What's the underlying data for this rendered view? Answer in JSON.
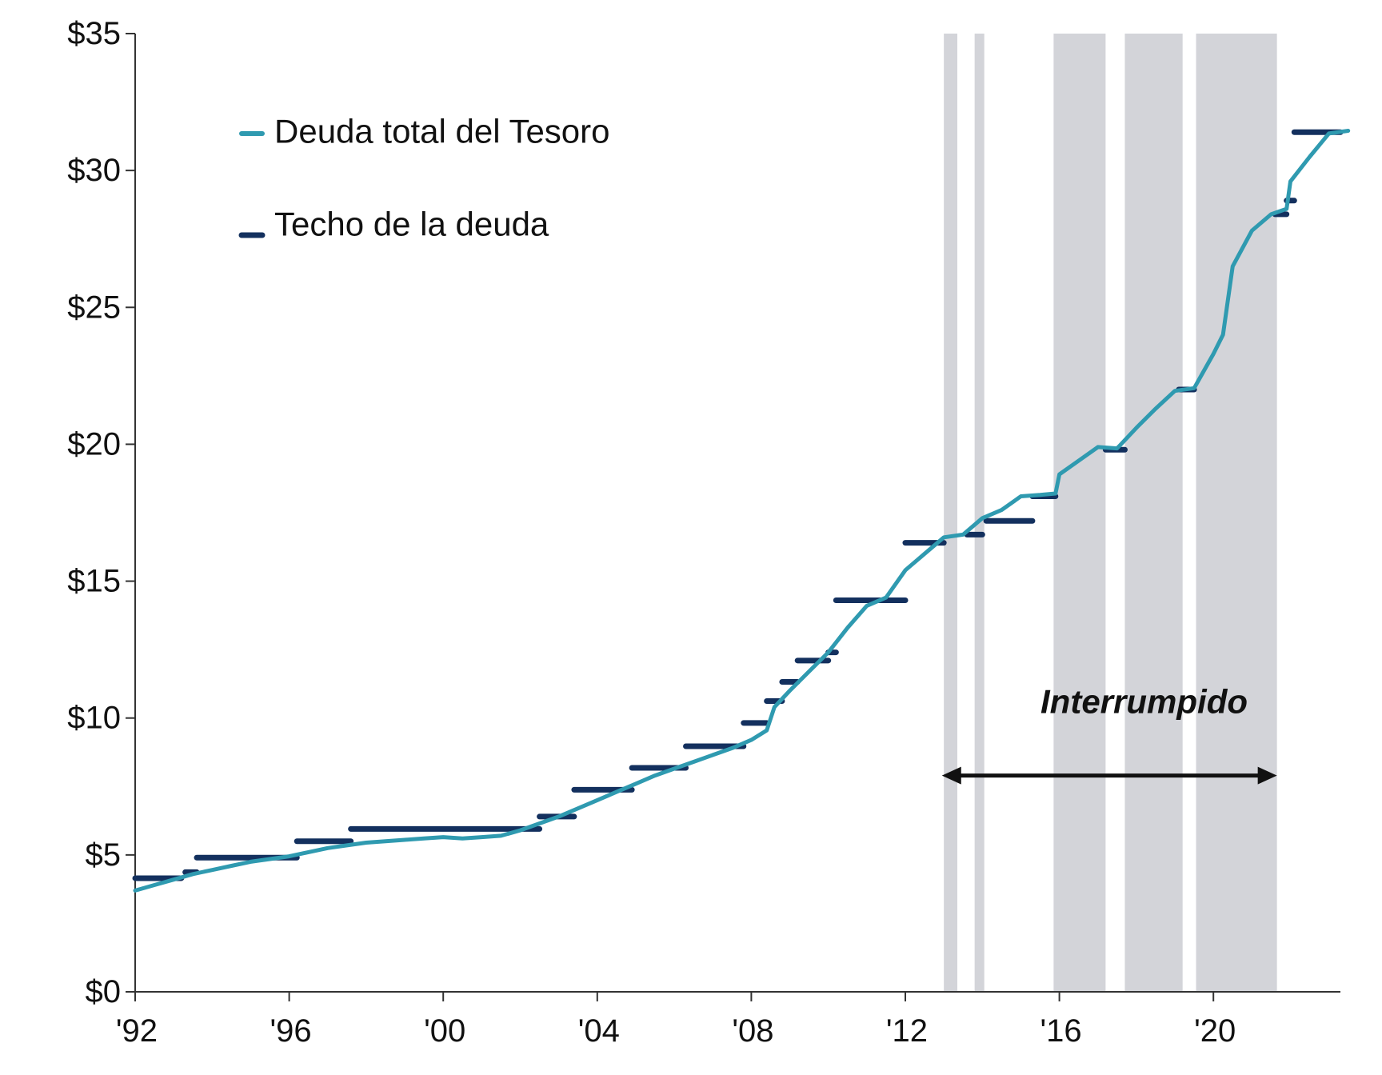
{
  "chart_data": {
    "type": "line",
    "title": "",
    "xlabel": "",
    "ylabel": "",
    "xlim": [
      1992.0,
      2023.7
    ],
    "ylim": [
      0,
      35
    ],
    "y_ticks": [
      {
        "value": 0,
        "label": "$0"
      },
      {
        "value": 5,
        "label": "$5"
      },
      {
        "value": 10,
        "label": "$10"
      },
      {
        "value": 15,
        "label": "$15"
      },
      {
        "value": 20,
        "label": "$20"
      },
      {
        "value": 25,
        "label": "$25"
      },
      {
        "value": 30,
        "label": "$30"
      },
      {
        "value": 35,
        "label": "$35"
      }
    ],
    "x_ticks": [
      {
        "value": 1992,
        "label": "'92"
      },
      {
        "value": 1996,
        "label": "'96"
      },
      {
        "value": 2000,
        "label": "'00"
      },
      {
        "value": 2004,
        "label": "'04"
      },
      {
        "value": 2008,
        "label": "'08"
      },
      {
        "value": 2012,
        "label": "'12"
      },
      {
        "value": 2016,
        "label": "'16"
      },
      {
        "value": 2020,
        "label": "'20"
      }
    ],
    "grid": false,
    "legend": "top-left",
    "colors": {
      "debt": "#2f9ab0",
      "ceiling": "#13305e",
      "shade": "#d3d4d9",
      "axis": "#333333",
      "arrow": "#111111"
    },
    "series": [
      {
        "name": "Deuda total del Tesoro",
        "style": "line",
        "points": [
          [
            1992.0,
            3.7
          ],
          [
            1992.5,
            3.9
          ],
          [
            1993.0,
            4.1
          ],
          [
            1993.5,
            4.3
          ],
          [
            1994.0,
            4.45
          ],
          [
            1994.5,
            4.6
          ],
          [
            1995.0,
            4.75
          ],
          [
            1995.5,
            4.85
          ],
          [
            1996.0,
            4.95
          ],
          [
            1996.5,
            5.1
          ],
          [
            1997.0,
            5.25
          ],
          [
            1997.5,
            5.35
          ],
          [
            1998.0,
            5.45
          ],
          [
            1998.5,
            5.5
          ],
          [
            1999.0,
            5.55
          ],
          [
            1999.5,
            5.6
          ],
          [
            2000.0,
            5.65
          ],
          [
            2000.5,
            5.6
          ],
          [
            2001.0,
            5.65
          ],
          [
            2001.5,
            5.7
          ],
          [
            2002.0,
            5.9
          ],
          [
            2002.5,
            6.15
          ],
          [
            2003.0,
            6.4
          ],
          [
            2003.5,
            6.7
          ],
          [
            2004.0,
            7.0
          ],
          [
            2004.5,
            7.3
          ],
          [
            2005.0,
            7.6
          ],
          [
            2005.5,
            7.9
          ],
          [
            2006.0,
            8.15
          ],
          [
            2006.5,
            8.4
          ],
          [
            2007.0,
            8.65
          ],
          [
            2007.5,
            8.9
          ],
          [
            2008.0,
            9.2
          ],
          [
            2008.4,
            9.55
          ],
          [
            2008.6,
            10.4
          ],
          [
            2009.0,
            11.0
          ],
          [
            2009.5,
            11.7
          ],
          [
            2010.0,
            12.4
          ],
          [
            2010.5,
            13.3
          ],
          [
            2011.0,
            14.1
          ],
          [
            2011.5,
            14.4
          ],
          [
            2012.0,
            15.4
          ],
          [
            2012.5,
            16.0
          ],
          [
            2013.0,
            16.6
          ],
          [
            2013.5,
            16.7
          ],
          [
            2014.0,
            17.3
          ],
          [
            2014.5,
            17.6
          ],
          [
            2015.0,
            18.1
          ],
          [
            2015.5,
            18.15
          ],
          [
            2015.9,
            18.2
          ],
          [
            2016.0,
            18.9
          ],
          [
            2016.5,
            19.4
          ],
          [
            2017.0,
            19.9
          ],
          [
            2017.5,
            19.85
          ],
          [
            2018.0,
            20.6
          ],
          [
            2018.5,
            21.3
          ],
          [
            2019.0,
            21.95
          ],
          [
            2019.5,
            22.05
          ],
          [
            2020.0,
            23.3
          ],
          [
            2020.25,
            24.0
          ],
          [
            2020.5,
            26.5
          ],
          [
            2021.0,
            27.8
          ],
          [
            2021.5,
            28.4
          ],
          [
            2021.9,
            28.6
          ],
          [
            2022.0,
            29.6
          ],
          [
            2022.5,
            30.5
          ],
          [
            2023.0,
            31.35
          ],
          [
            2023.5,
            31.45
          ]
        ]
      },
      {
        "name": "Techo de la deuda",
        "style": "steps",
        "segments": [
          [
            1992.0,
            1993.2,
            4.15
          ],
          [
            1993.3,
            1993.6,
            4.37
          ],
          [
            1993.6,
            1996.2,
            4.9
          ],
          [
            1996.2,
            1997.6,
            5.5
          ],
          [
            1997.6,
            2002.5,
            5.95
          ],
          [
            2002.5,
            2003.4,
            6.4
          ],
          [
            2003.4,
            2004.9,
            7.38
          ],
          [
            2004.9,
            2006.3,
            8.18
          ],
          [
            2006.3,
            2007.8,
            8.97
          ],
          [
            2007.8,
            2008.4,
            9.82
          ],
          [
            2008.4,
            2008.8,
            10.62
          ],
          [
            2008.8,
            2009.2,
            11.32
          ],
          [
            2009.2,
            2010.0,
            12.1
          ],
          [
            2010.0,
            2010.2,
            12.4
          ],
          [
            2010.2,
            2012.0,
            14.3
          ],
          [
            2012.0,
            2013.0,
            16.4
          ],
          [
            2013.6,
            2014.0,
            16.7
          ],
          [
            2014.1,
            2015.3,
            17.2
          ],
          [
            2015.3,
            2015.9,
            18.1
          ],
          [
            2017.2,
            2017.7,
            19.8
          ],
          [
            2019.1,
            2019.5,
            22.0
          ],
          [
            2021.6,
            2021.9,
            28.4
          ],
          [
            2021.9,
            2022.1,
            28.9
          ],
          [
            2022.1,
            2023.3,
            31.4
          ]
        ]
      }
    ],
    "shaded_regions": [
      [
        2013.0,
        2013.35
      ],
      [
        2013.8,
        2014.05
      ],
      [
        2015.85,
        2017.2
      ],
      [
        2017.7,
        2019.2
      ],
      [
        2019.55,
        2021.65
      ]
    ],
    "annotation": {
      "text": "Interrumpido",
      "arrow_from": 2012.95,
      "arrow_to": 2021.65,
      "text_at": 2018.2,
      "y": 7.9,
      "label_y": 10.6
    }
  }
}
